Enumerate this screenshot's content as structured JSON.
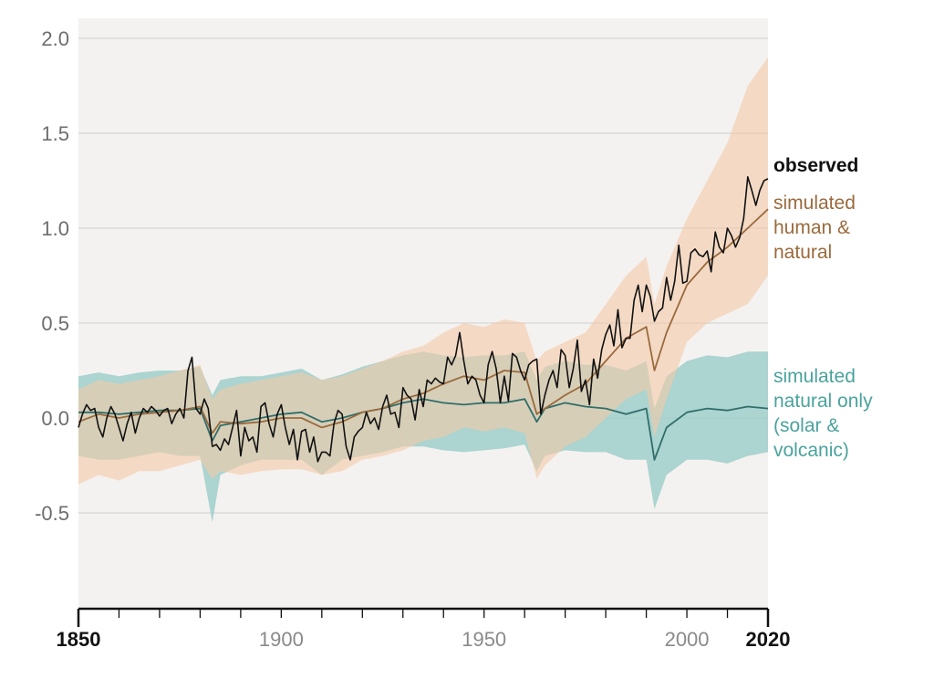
{
  "chart_data": {
    "type": "line",
    "title": "",
    "xlabel": "",
    "ylabel": "",
    "xlim": [
      1850,
      2020
    ],
    "ylim": [
      -1.0,
      2.0
    ],
    "grid": true,
    "y_ticks": [
      2.0,
      1.5,
      1.0,
      0.5,
      0.0,
      -0.5
    ],
    "y_tick_labels": [
      "2.0",
      "1.5",
      "1.0",
      "0.5",
      "0.0",
      "-0.5"
    ],
    "x_ticks": [
      1850,
      1900,
      1950,
      2000,
      2020
    ],
    "x_tick_labels": [
      "1850",
      "1900",
      "1950",
      "2000",
      "2020"
    ],
    "x_bold_ticks": [
      1850,
      2020
    ],
    "colors": {
      "plot_bg": "#f4f2f0",
      "grid": "#d9d9d9",
      "observed": "#111111",
      "human": "#9a6a3c",
      "human_band": "#f4c9a9",
      "natural": "#2f6e6a",
      "natural_band": "#9fcfca",
      "axis": "#111111"
    },
    "labels": {
      "observed": "observed",
      "human": [
        "simulated",
        "human &",
        "natural"
      ],
      "natural": [
        "simulated",
        "natural only",
        "(solar &",
        "volcanic)"
      ]
    },
    "series": [
      {
        "name": "observed",
        "role": "observed",
        "x": [
          1850,
          1851,
          1852,
          1853,
          1854,
          1855,
          1856,
          1857,
          1858,
          1859,
          1860,
          1861,
          1862,
          1863,
          1864,
          1865,
          1866,
          1867,
          1868,
          1869,
          1870,
          1871,
          1872,
          1873,
          1874,
          1875,
          1876,
          1877,
          1878,
          1879,
          1880,
          1881,
          1882,
          1883,
          1884,
          1885,
          1886,
          1887,
          1888,
          1889,
          1890,
          1891,
          1892,
          1893,
          1894,
          1895,
          1896,
          1897,
          1898,
          1899,
          1900,
          1901,
          1902,
          1903,
          1904,
          1905,
          1906,
          1907,
          1908,
          1909,
          1910,
          1911,
          1912,
          1913,
          1914,
          1915,
          1916,
          1917,
          1918,
          1919,
          1920,
          1921,
          1922,
          1923,
          1924,
          1925,
          1926,
          1927,
          1928,
          1929,
          1930,
          1931,
          1932,
          1933,
          1934,
          1935,
          1936,
          1937,
          1938,
          1939,
          1940,
          1941,
          1942,
          1943,
          1944,
          1945,
          1946,
          1947,
          1948,
          1949,
          1950,
          1951,
          1952,
          1953,
          1954,
          1955,
          1956,
          1957,
          1958,
          1959,
          1960,
          1961,
          1962,
          1963,
          1964,
          1965,
          1966,
          1967,
          1968,
          1969,
          1970,
          1971,
          1972,
          1973,
          1974,
          1975,
          1976,
          1977,
          1978,
          1979,
          1980,
          1981,
          1982,
          1983,
          1984,
          1985,
          1986,
          1987,
          1988,
          1989,
          1990,
          1991,
          1992,
          1993,
          1994,
          1995,
          1996,
          1997,
          1998,
          1999,
          2000,
          2001,
          2002,
          2003,
          2004,
          2005,
          2006,
          2007,
          2008,
          2009,
          2010,
          2011,
          2012,
          2013,
          2014,
          2015,
          2016,
          2017,
          2018,
          2019,
          2020
        ],
        "y": [
          -0.05,
          0.02,
          0.07,
          0.04,
          0.05,
          -0.05,
          -0.1,
          0.0,
          0.06,
          0.02,
          -0.05,
          -0.12,
          -0.03,
          0.03,
          -0.08,
          0.0,
          0.05,
          0.03,
          0.06,
          0.04,
          0.01,
          0.04,
          0.05,
          -0.03,
          0.02,
          0.05,
          0.0,
          0.25,
          0.32,
          0.05,
          0.02,
          0.1,
          0.05,
          -0.15,
          -0.14,
          -0.17,
          -0.11,
          -0.14,
          -0.05,
          0.04,
          -0.2,
          -0.05,
          -0.12,
          -0.1,
          -0.18,
          0.06,
          0.08,
          -0.03,
          -0.1,
          0.02,
          0.07,
          -0.05,
          -0.14,
          -0.06,
          -0.22,
          -0.07,
          -0.06,
          -0.18,
          -0.1,
          -0.23,
          -0.18,
          -0.18,
          -0.2,
          -0.03,
          0.04,
          0.02,
          -0.15,
          -0.22,
          -0.1,
          -0.07,
          -0.05,
          0.03,
          -0.03,
          0.0,
          -0.06,
          0.06,
          0.12,
          0.02,
          0.03,
          -0.05,
          0.16,
          0.12,
          0.1,
          -0.01,
          0.15,
          0.06,
          0.2,
          0.18,
          0.21,
          0.19,
          0.18,
          0.32,
          0.28,
          0.33,
          0.45,
          0.3,
          0.18,
          0.22,
          0.2,
          0.12,
          0.08,
          0.28,
          0.35,
          0.26,
          0.08,
          0.22,
          0.09,
          0.34,
          0.32,
          0.25,
          0.2,
          0.28,
          0.3,
          0.31,
          0.02,
          0.12,
          0.2,
          0.25,
          0.16,
          0.36,
          0.33,
          0.16,
          0.26,
          0.41,
          0.14,
          0.2,
          0.07,
          0.31,
          0.21,
          0.36,
          0.44,
          0.49,
          0.38,
          0.57,
          0.37,
          0.42,
          0.42,
          0.62,
          0.7,
          0.56,
          0.7,
          0.64,
          0.51,
          0.56,
          0.58,
          0.74,
          0.62,
          0.72,
          0.91,
          0.71,
          0.72,
          0.87,
          0.89,
          0.86,
          0.85,
          0.88,
          0.77,
          0.98,
          0.9,
          0.87,
          1.0,
          0.96,
          0.9,
          0.95,
          1.05,
          1.27,
          1.2,
          1.12,
          1.2,
          1.25,
          1.26
        ]
      },
      {
        "name": "simulated human & natural",
        "role": "human",
        "x": [
          1850,
          1855,
          1860,
          1865,
          1870,
          1875,
          1880,
          1883,
          1885,
          1890,
          1895,
          1900,
          1905,
          1910,
          1915,
          1920,
          1925,
          1930,
          1935,
          1940,
          1945,
          1950,
          1955,
          1960,
          1963,
          1965,
          1970,
          1975,
          1980,
          1985,
          1990,
          1992,
          1995,
          2000,
          2005,
          2010,
          2015,
          2020
        ],
        "y": [
          -0.02,
          0.02,
          0.0,
          0.02,
          0.03,
          0.04,
          0.06,
          -0.08,
          -0.02,
          -0.03,
          -0.02,
          0.0,
          0.0,
          -0.05,
          -0.02,
          0.03,
          0.05,
          0.1,
          0.13,
          0.18,
          0.22,
          0.2,
          0.25,
          0.24,
          0.02,
          0.05,
          0.12,
          0.18,
          0.3,
          0.42,
          0.48,
          0.25,
          0.45,
          0.7,
          0.82,
          0.9,
          1.0,
          1.1
        ],
        "band_low": [
          -0.35,
          -0.3,
          -0.33,
          -0.28,
          -0.28,
          -0.25,
          -0.22,
          -0.32,
          -0.28,
          -0.3,
          -0.28,
          -0.27,
          -0.27,
          -0.3,
          -0.28,
          -0.22,
          -0.2,
          -0.17,
          -0.12,
          -0.1,
          -0.05,
          -0.07,
          -0.05,
          -0.08,
          -0.32,
          -0.25,
          -0.15,
          -0.1,
          0.0,
          0.1,
          0.15,
          -0.1,
          0.1,
          0.4,
          0.5,
          0.55,
          0.6,
          0.75
        ],
        "band_high": [
          0.15,
          0.2,
          0.18,
          0.2,
          0.22,
          0.25,
          0.28,
          0.1,
          0.15,
          0.18,
          0.2,
          0.22,
          0.24,
          0.2,
          0.22,
          0.26,
          0.3,
          0.35,
          0.38,
          0.45,
          0.5,
          0.48,
          0.52,
          0.5,
          0.3,
          0.35,
          0.4,
          0.45,
          0.6,
          0.75,
          0.85,
          0.6,
          0.8,
          1.05,
          1.25,
          1.45,
          1.75,
          1.9
        ]
      },
      {
        "name": "simulated natural only (solar & volcanic)",
        "role": "natural",
        "x": [
          1850,
          1855,
          1860,
          1865,
          1870,
          1875,
          1880,
          1883,
          1885,
          1890,
          1895,
          1900,
          1905,
          1910,
          1915,
          1920,
          1925,
          1930,
          1935,
          1940,
          1945,
          1950,
          1955,
          1960,
          1963,
          1965,
          1970,
          1975,
          1980,
          1985,
          1990,
          1992,
          1995,
          2000,
          2005,
          2010,
          2015,
          2020
        ],
        "y": [
          0.03,
          0.03,
          0.02,
          0.03,
          0.04,
          0.04,
          0.05,
          -0.12,
          -0.04,
          -0.02,
          0.0,
          0.02,
          0.03,
          -0.02,
          0.0,
          0.03,
          0.05,
          0.08,
          0.1,
          0.08,
          0.07,
          0.08,
          0.08,
          0.1,
          -0.02,
          0.05,
          0.08,
          0.06,
          0.05,
          0.02,
          0.05,
          -0.22,
          -0.05,
          0.03,
          0.05,
          0.04,
          0.06,
          0.05
        ],
        "band_low": [
          -0.2,
          -0.22,
          -0.22,
          -0.2,
          -0.18,
          -0.2,
          -0.2,
          -0.55,
          -0.3,
          -0.25,
          -0.22,
          -0.22,
          -0.22,
          -0.3,
          -0.22,
          -0.2,
          -0.18,
          -0.15,
          -0.15,
          -0.17,
          -0.18,
          -0.17,
          -0.16,
          -0.14,
          -0.28,
          -0.2,
          -0.17,
          -0.18,
          -0.18,
          -0.22,
          -0.22,
          -0.48,
          -0.3,
          -0.22,
          -0.22,
          -0.24,
          -0.2,
          -0.18
        ],
        "band_high": [
          0.22,
          0.24,
          0.22,
          0.24,
          0.25,
          0.25,
          0.27,
          0.12,
          0.2,
          0.22,
          0.22,
          0.24,
          0.26,
          0.2,
          0.23,
          0.27,
          0.3,
          0.33,
          0.35,
          0.33,
          0.32,
          0.33,
          0.33,
          0.35,
          0.2,
          0.27,
          0.3,
          0.28,
          0.28,
          0.25,
          0.3,
          0.05,
          0.22,
          0.3,
          0.33,
          0.32,
          0.35,
          0.35
        ]
      }
    ]
  }
}
